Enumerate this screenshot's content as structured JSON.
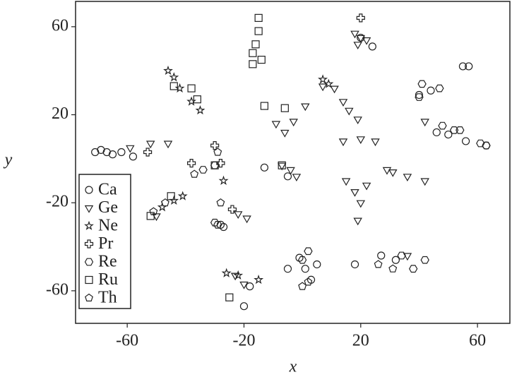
{
  "chart_data": {
    "type": "scatter",
    "x_label": "x",
    "y_label": "y",
    "xlim": [
      -77.7,
      71.1
    ],
    "ylim": [
      -74.8,
      71.5
    ],
    "xticks": [
      -60,
      -20,
      20,
      60
    ],
    "yticks": [
      -60,
      -20,
      20,
      60
    ],
    "grid": false,
    "legend_position": "lower left",
    "series": [
      {
        "name": "Ca",
        "color": "#222222",
        "marker": "circle",
        "x": [
          -71,
          -69,
          -67,
          -65,
          -62,
          -58,
          40,
          44,
          55,
          57,
          46,
          50,
          56,
          63,
          -13,
          -5,
          -28,
          -27,
          -1,
          1,
          3,
          5,
          -5,
          18,
          27,
          32,
          -20,
          -18,
          20,
          24
        ],
        "y": [
          3,
          4,
          3,
          2,
          3,
          1,
          29,
          31,
          42,
          42,
          12,
          11,
          8,
          6,
          -4,
          -8,
          -30,
          -31,
          -45,
          -50,
          -55,
          -48,
          -50,
          -48,
          -44,
          -46,
          -67,
          -58,
          55,
          51
        ]
      },
      {
        "name": "Ge",
        "color": "#222222",
        "marker": "triangle",
        "x": [
          -52,
          -59,
          -46,
          18,
          19,
          20,
          22,
          -9,
          -6,
          -3,
          1,
          7,
          11,
          14,
          16,
          19,
          14,
          20,
          25,
          29,
          31,
          36,
          42,
          -7,
          -4,
          -2,
          15,
          18,
          20,
          19,
          22,
          -50,
          -22,
          -19,
          -23,
          -20,
          42,
          36
        ],
        "y": [
          7,
          5,
          7,
          57,
          52,
          55,
          54,
          16,
          12,
          17,
          24,
          33,
          32,
          26,
          22,
          18,
          8,
          9,
          8,
          -5,
          -6,
          -8,
          -10,
          -3,
          -5,
          -8,
          -10,
          -15,
          -20,
          -28,
          -12,
          -26,
          -25,
          -27,
          -53,
          -57,
          17,
          -44
        ]
      },
      {
        "name": "Ne",
        "color": "#222222",
        "marker": "star",
        "x": [
          -46,
          -44,
          -42,
          -38,
          -35,
          7,
          9,
          -48,
          -44,
          -41,
          -26,
          -22,
          -15,
          -27
        ],
        "y": [
          40,
          37,
          32,
          26,
          22,
          36,
          34,
          -22,
          -19,
          -17,
          -52,
          -53,
          -55,
          -10
        ]
      },
      {
        "name": "Pr",
        "color": "#222222",
        "marker": "plus",
        "x": [
          -53,
          -30,
          -38,
          -28,
          20,
          -24
        ],
        "y": [
          3,
          6,
          -2,
          -2,
          64,
          -23
        ]
      },
      {
        "name": "Re",
        "color": "#222222",
        "marker": "hexagon",
        "x": [
          41,
          47,
          40,
          48,
          52,
          54,
          61,
          63,
          38,
          42,
          34,
          -34,
          -30,
          2,
          0,
          -30,
          -29
        ],
        "y": [
          34,
          32,
          28,
          15,
          13,
          13,
          7,
          6,
          -50,
          -46,
          -44,
          -5,
          -3,
          -42,
          -46,
          -29,
          -30
        ]
      },
      {
        "name": "Ru",
        "color": "#222222",
        "marker": "square",
        "x": [
          -15,
          -15,
          -16,
          -17,
          -14,
          -17,
          -44,
          -38,
          -36,
          -13,
          -6,
          -30,
          -7,
          -52,
          -45,
          -25
        ],
        "y": [
          64,
          58,
          52,
          48,
          45,
          43,
          33,
          32,
          27,
          24,
          23,
          -3,
          -3,
          -26,
          -17,
          -63
        ]
      },
      {
        "name": "Th",
        "color": "#222222",
        "marker": "pentagon",
        "x": [
          -47,
          -51,
          -29,
          -37,
          -28,
          2,
          0,
          31,
          26
        ],
        "y": [
          -20,
          -24,
          3,
          -7,
          -20,
          -56,
          -58,
          -50,
          -48
        ]
      }
    ]
  }
}
